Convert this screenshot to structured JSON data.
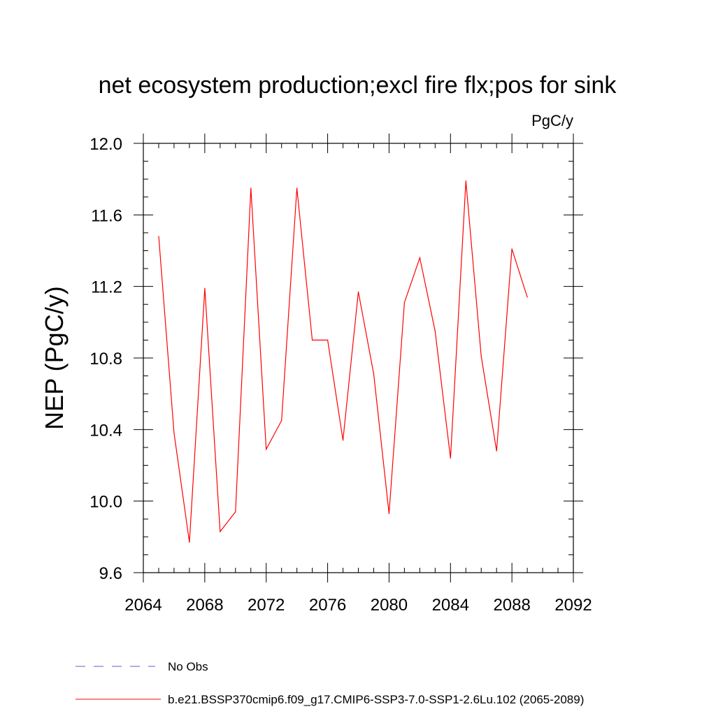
{
  "chart_data": {
    "type": "line",
    "title": "net ecosystem production;excl fire flx;pos for sink",
    "units": "PgC/y",
    "ylabel": "NEP  (PgC/y)",
    "xlabel": "",
    "xlim": [
      2064,
      2092
    ],
    "ylim": [
      9.6,
      12.0
    ],
    "xticks": [
      2064,
      2068,
      2072,
      2076,
      2080,
      2084,
      2088,
      2092
    ],
    "yticks": [
      9.6,
      10.0,
      10.4,
      10.8,
      11.2,
      11.6,
      12.0
    ],
    "ytick_labels": [
      "9.6",
      "10.0",
      "10.4",
      "10.8",
      "11.2",
      "11.6",
      "12.0"
    ],
    "grid": false,
    "legend_position": "bottom",
    "series": [
      {
        "name": "b.e21.BSSP370cmip6.f09_g17.CMIP6-SSP3-7.0-SSP1-2.6Lu.102 (2065-2089)",
        "color": "#ff0000",
        "style": "solid",
        "x": [
          2065,
          2066,
          2067,
          2068,
          2069,
          2070,
          2071,
          2072,
          2073,
          2074,
          2075,
          2076,
          2077,
          2078,
          2079,
          2080,
          2081,
          2082,
          2083,
          2084,
          2085,
          2086,
          2087,
          2088,
          2089
        ],
        "values": [
          11.48,
          10.38,
          9.77,
          11.19,
          9.83,
          9.94,
          11.75,
          10.29,
          10.45,
          11.75,
          10.9,
          10.9,
          10.34,
          11.17,
          10.71,
          9.93,
          11.11,
          11.36,
          10.95,
          10.24,
          11.79,
          10.81,
          10.28,
          11.41,
          11.14
        ]
      }
    ],
    "legend": [
      {
        "label": "No Obs",
        "color": "#6a5acd",
        "style": "dashed"
      },
      {
        "label": "b.e21.BSSP370cmip6.f09_g17.CMIP6-SSP3-7.0-SSP1-2.6Lu.102 (2065-2089)",
        "color": "#ff0000",
        "style": "solid"
      }
    ]
  }
}
